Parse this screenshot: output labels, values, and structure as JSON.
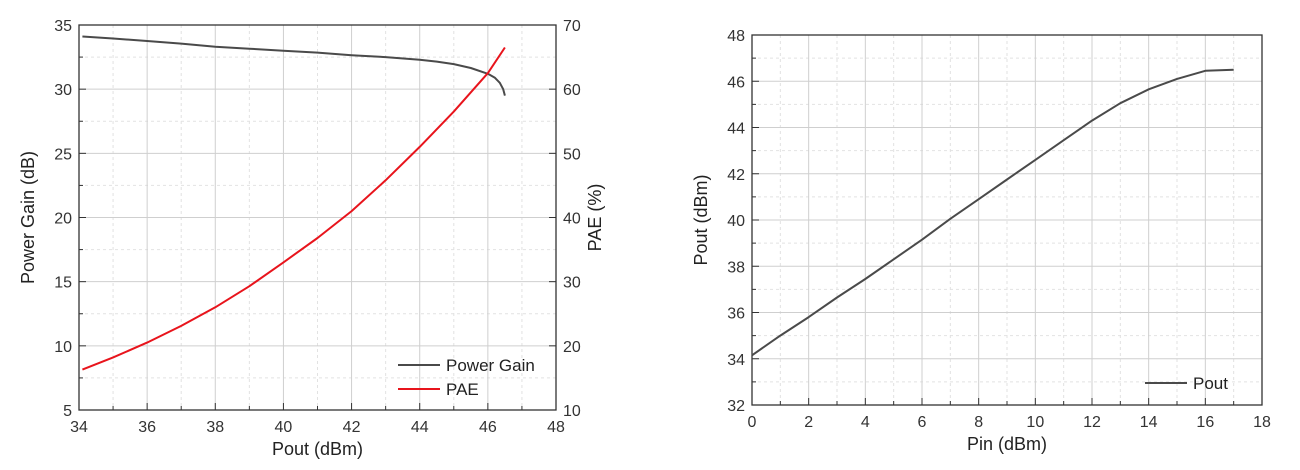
{
  "chart_data": [
    {
      "type": "line",
      "xlabel": "Pout (dBm)",
      "ylabel": "Power Gain (dB)",
      "y2label": "PAE (%)",
      "xlim": [
        34,
        48
      ],
      "ylim": [
        5,
        35
      ],
      "y2lim": [
        10,
        70
      ],
      "xticks": [
        34,
        36,
        38,
        40,
        42,
        44,
        46,
        48
      ],
      "yticks": [
        5,
        10,
        15,
        20,
        25,
        30,
        35
      ],
      "y2ticks": [
        10,
        20,
        30,
        40,
        50,
        60,
        70
      ],
      "grid": true,
      "legend": "bottom-right",
      "series": [
        {
          "name": "Power Gain",
          "axis": "left",
          "color": "#4a4a4a",
          "x": [
            34.1,
            35,
            36,
            37,
            38,
            39,
            40,
            41,
            42,
            43,
            44,
            44.5,
            45,
            45.5,
            46,
            46.2,
            46.35,
            46.45,
            46.5
          ],
          "y": [
            34.1,
            33.95,
            33.75,
            33.55,
            33.3,
            33.15,
            33.0,
            32.85,
            32.65,
            32.5,
            32.3,
            32.15,
            31.95,
            31.65,
            31.2,
            30.9,
            30.5,
            30.0,
            29.5
          ]
        },
        {
          "name": "PAE",
          "axis": "right",
          "color": "#e8141c",
          "x": [
            34.1,
            35,
            36,
            37,
            38,
            39,
            40,
            41,
            42,
            43,
            44,
            45,
            46,
            46.5
          ],
          "y": [
            16.3,
            18.2,
            20.5,
            23.1,
            26.0,
            29.3,
            33.0,
            36.8,
            41.0,
            45.8,
            51.0,
            56.5,
            62.5,
            66.5
          ]
        }
      ]
    },
    {
      "type": "line",
      "xlabel": "Pin (dBm)",
      "ylabel": "Pout (dBm)",
      "xlim": [
        0,
        18
      ],
      "ylim": [
        32,
        48
      ],
      "xticks": [
        0,
        2,
        4,
        6,
        8,
        10,
        12,
        14,
        16,
        18
      ],
      "yticks": [
        32,
        34,
        36,
        38,
        40,
        42,
        44,
        46,
        48
      ],
      "grid": true,
      "legend": "bottom-right",
      "series": [
        {
          "name": "Pout",
          "color": "#4a4a4a",
          "x": [
            0,
            1,
            2,
            3,
            4,
            5,
            6,
            7,
            8,
            9,
            10,
            11,
            12,
            13,
            14,
            15,
            16,
            17
          ],
          "y": [
            34.15,
            35.0,
            35.8,
            36.65,
            37.45,
            38.3,
            39.15,
            40.05,
            40.9,
            41.75,
            42.6,
            43.45,
            44.3,
            45.05,
            45.65,
            46.1,
            46.45,
            46.5
          ]
        }
      ]
    }
  ]
}
